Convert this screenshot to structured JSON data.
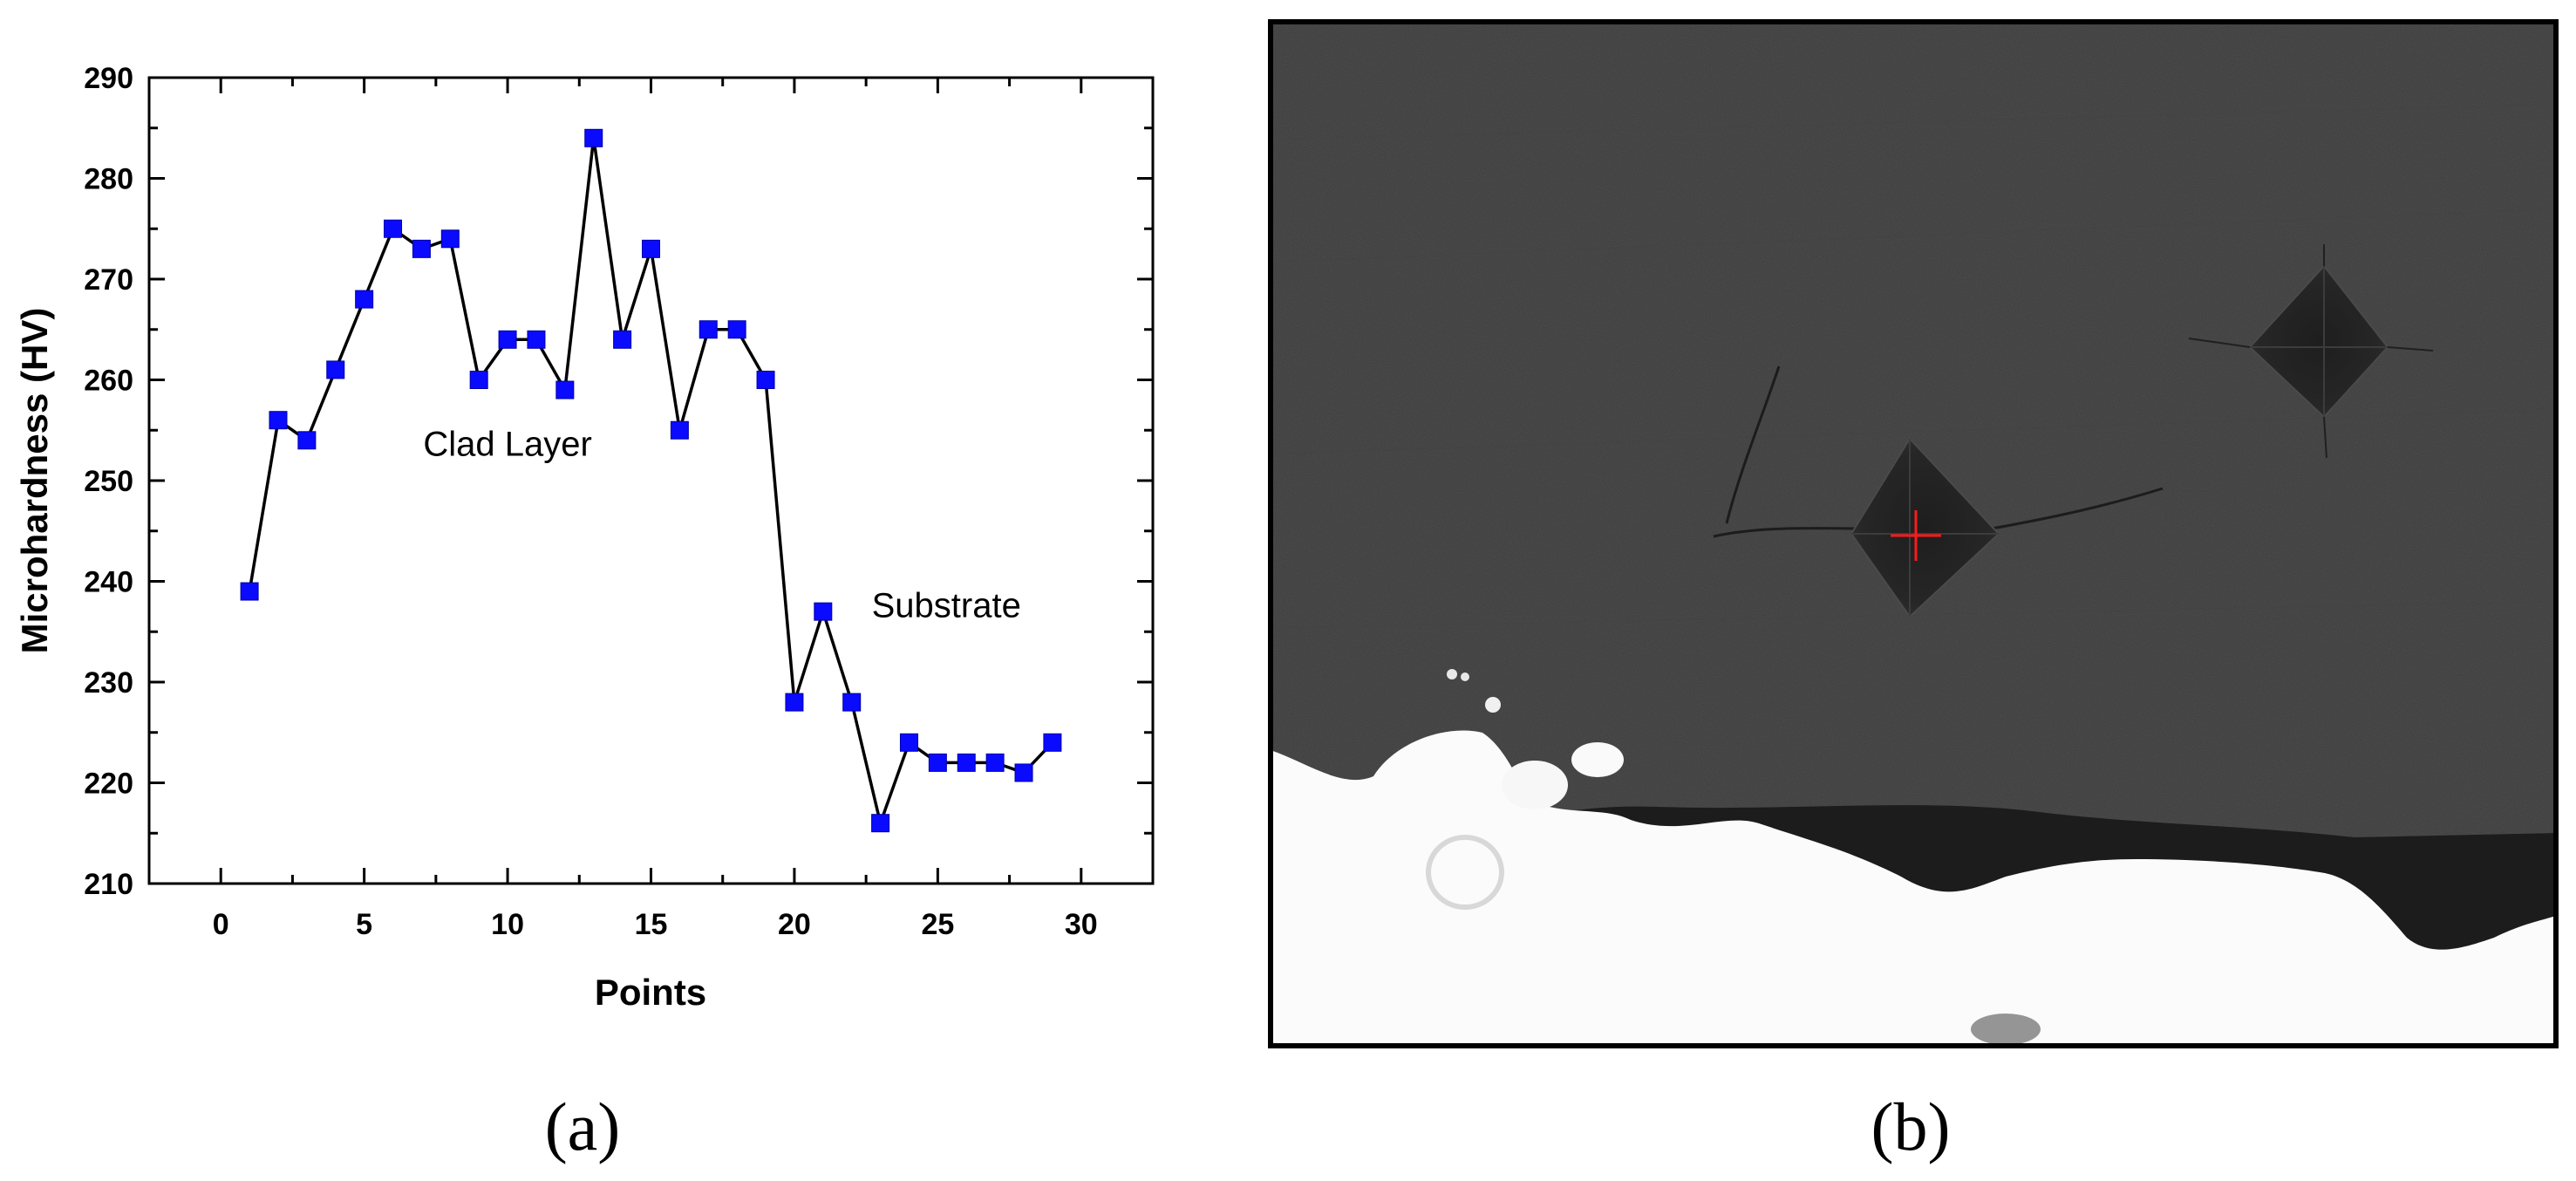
{
  "panels": {
    "a": "(a)",
    "b": "(b)"
  },
  "chart_data": {
    "type": "line",
    "xlabel": "Points",
    "ylabel": "Microhardness (HV)",
    "xlim": [
      -2.5,
      32.5
    ],
    "ylim": [
      210,
      290
    ],
    "xticks": [
      0,
      5,
      10,
      15,
      20,
      25,
      30
    ],
    "yticks": [
      210,
      220,
      230,
      240,
      250,
      260,
      270,
      280,
      290
    ],
    "grid": false,
    "marker": "square",
    "colors": {
      "marker": "#0a0aff",
      "line": "#000000"
    },
    "series": [
      {
        "x": [
          1,
          2,
          3,
          4,
          5,
          6,
          7,
          8,
          9,
          10,
          11,
          12,
          13,
          14,
          15,
          16,
          17,
          18,
          19,
          20,
          21,
          22,
          23,
          24,
          25,
          26,
          27,
          28,
          29
        ],
        "values": [
          239,
          256,
          254,
          261,
          268,
          275,
          273,
          274,
          260,
          264,
          264,
          259,
          284,
          264,
          273,
          255,
          265,
          265,
          260,
          228,
          237,
          228,
          216,
          224,
          222,
          222,
          222,
          221,
          224
        ]
      }
    ],
    "annotations": [
      {
        "text": "Clad Layer",
        "x": 10,
        "y": 253.5
      },
      {
        "text": "Substrate",
        "x": 25.3,
        "y": 237.5
      }
    ]
  },
  "micrograph": {
    "colors": {
      "background": "#3b3b3b",
      "substrate": "#fbfbfb",
      "cursor": "#ff1a1a"
    }
  }
}
